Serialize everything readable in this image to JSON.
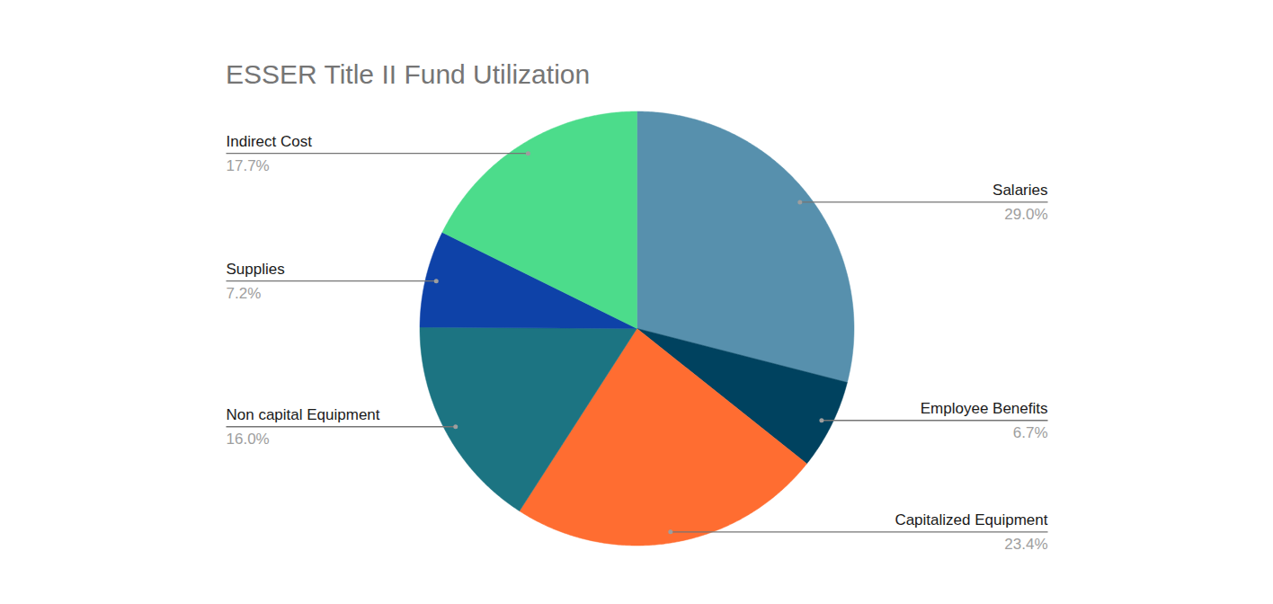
{
  "chart_data": {
    "type": "pie",
    "title": "ESSER Title II Fund Utilization",
    "categories": [
      "Salaries",
      "Employee Benefits",
      "Capitalized Equipment",
      "Non capital Equipment",
      "Supplies",
      "Indirect Cost"
    ],
    "values": [
      29.0,
      6.7,
      23.4,
      16.0,
      7.2,
      17.7
    ],
    "value_labels": [
      "29.0%",
      "6.7%",
      "23.4%",
      "16.0%",
      "7.2%",
      "17.7%"
    ],
    "colors": [
      "#5790ad",
      "#00425f",
      "#ff6d31",
      "#1c7482",
      "#0e42a8",
      "#4cdc8b"
    ],
    "data_labels": true
  }
}
